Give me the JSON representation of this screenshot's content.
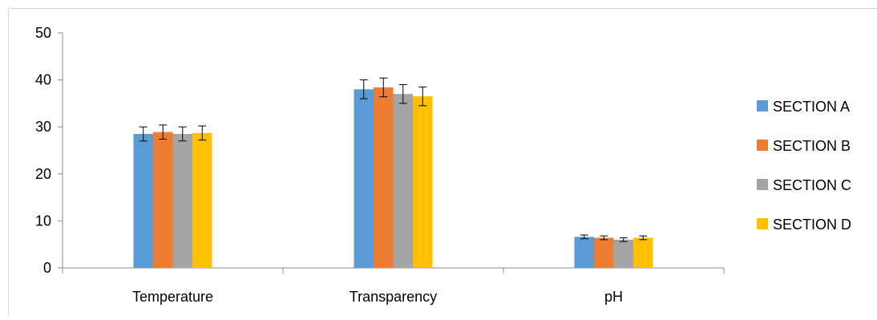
{
  "chart_data": {
    "type": "bar",
    "categories": [
      "Temperature",
      "Transparency",
      "pH"
    ],
    "series": [
      {
        "name": "SECTION A",
        "color": "#5b9bd5",
        "values": [
          28.5,
          38.0,
          6.6
        ],
        "errors": [
          1.5,
          2.0,
          0.4
        ]
      },
      {
        "name": "SECTION B",
        "color": "#ed7d31",
        "values": [
          28.9,
          38.4,
          6.4
        ],
        "errors": [
          1.5,
          2.0,
          0.4
        ]
      },
      {
        "name": "SECTION C",
        "color": "#a5a5a5",
        "values": [
          28.5,
          37.0,
          6.0
        ],
        "errors": [
          1.5,
          2.0,
          0.4
        ]
      },
      {
        "name": "SECTION D",
        "color": "#ffc000",
        "values": [
          28.7,
          36.5,
          6.4
        ],
        "errors": [
          1.5,
          2.0,
          0.4
        ]
      }
    ],
    "ylim": [
      0,
      50
    ],
    "yticks": [
      0,
      10,
      20,
      30,
      40,
      50
    ],
    "grid": false,
    "error_bars": true,
    "legend_position": "right",
    "title": "",
    "xlabel": "",
    "ylabel": ""
  }
}
